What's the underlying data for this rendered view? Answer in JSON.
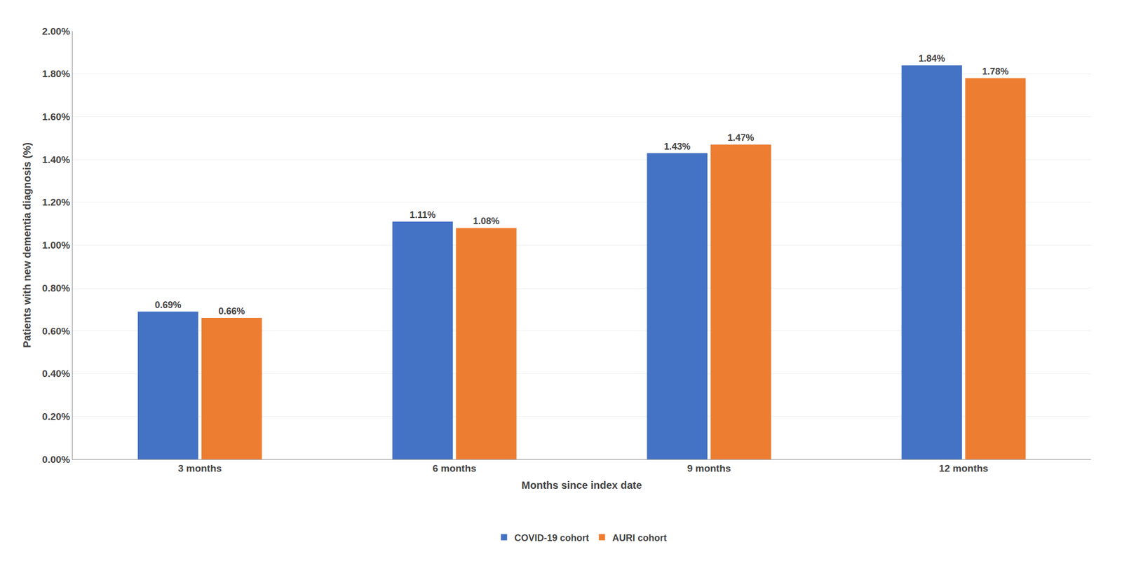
{
  "chart_data": {
    "type": "bar",
    "categories": [
      "3 months",
      "6 months",
      "9 months",
      "12 months"
    ],
    "series": [
      {
        "name": "COVID-19 cohort",
        "color": "#4472C4",
        "values": [
          0.0069,
          0.0111,
          0.0143,
          0.0184
        ],
        "value_labels": [
          "0.69%",
          "1.11%",
          "1.43%",
          "1.84%"
        ]
      },
      {
        "name": "AURI cohort",
        "color": "#ED7D31",
        "values": [
          0.0066,
          0.0108,
          0.0147,
          0.0178
        ],
        "value_labels": [
          "0.66%",
          "1.08%",
          "1.47%",
          "1.78%"
        ]
      }
    ],
    "xlabel": "Months since index date",
    "ylabel": "Patients with new dementia diagnosis (%)",
    "ylim": [
      0,
      0.02
    ],
    "yticks": [
      {
        "value": 0.0,
        "label": "0.00%"
      },
      {
        "value": 0.002,
        "label": "0.20%"
      },
      {
        "value": 0.004,
        "label": "0.40%"
      },
      {
        "value": 0.006,
        "label": "0.60%"
      },
      {
        "value": 0.008,
        "label": "0.80%"
      },
      {
        "value": 0.01,
        "label": "1.00%"
      },
      {
        "value": 0.012,
        "label": "1.20%"
      },
      {
        "value": 0.014,
        "label": "1.40%"
      },
      {
        "value": 0.016,
        "label": "1.60%"
      },
      {
        "value": 0.018,
        "label": "1.80%"
      },
      {
        "value": 0.02,
        "label": "2.00%"
      }
    ],
    "grid": true,
    "legend": "bottom",
    "data_labels": true
  }
}
